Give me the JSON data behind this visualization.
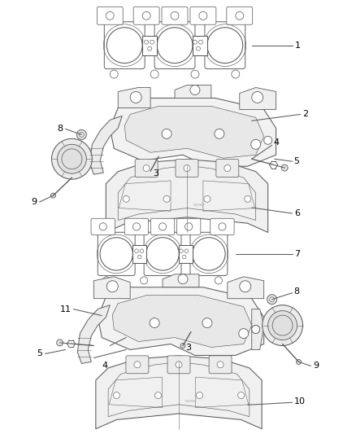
{
  "bg_color": "#ffffff",
  "line_color": "#5a5a5a",
  "text_color": "#000000",
  "fig_width": 4.38,
  "fig_height": 5.33,
  "dpi": 100,
  "lw": 0.75
}
